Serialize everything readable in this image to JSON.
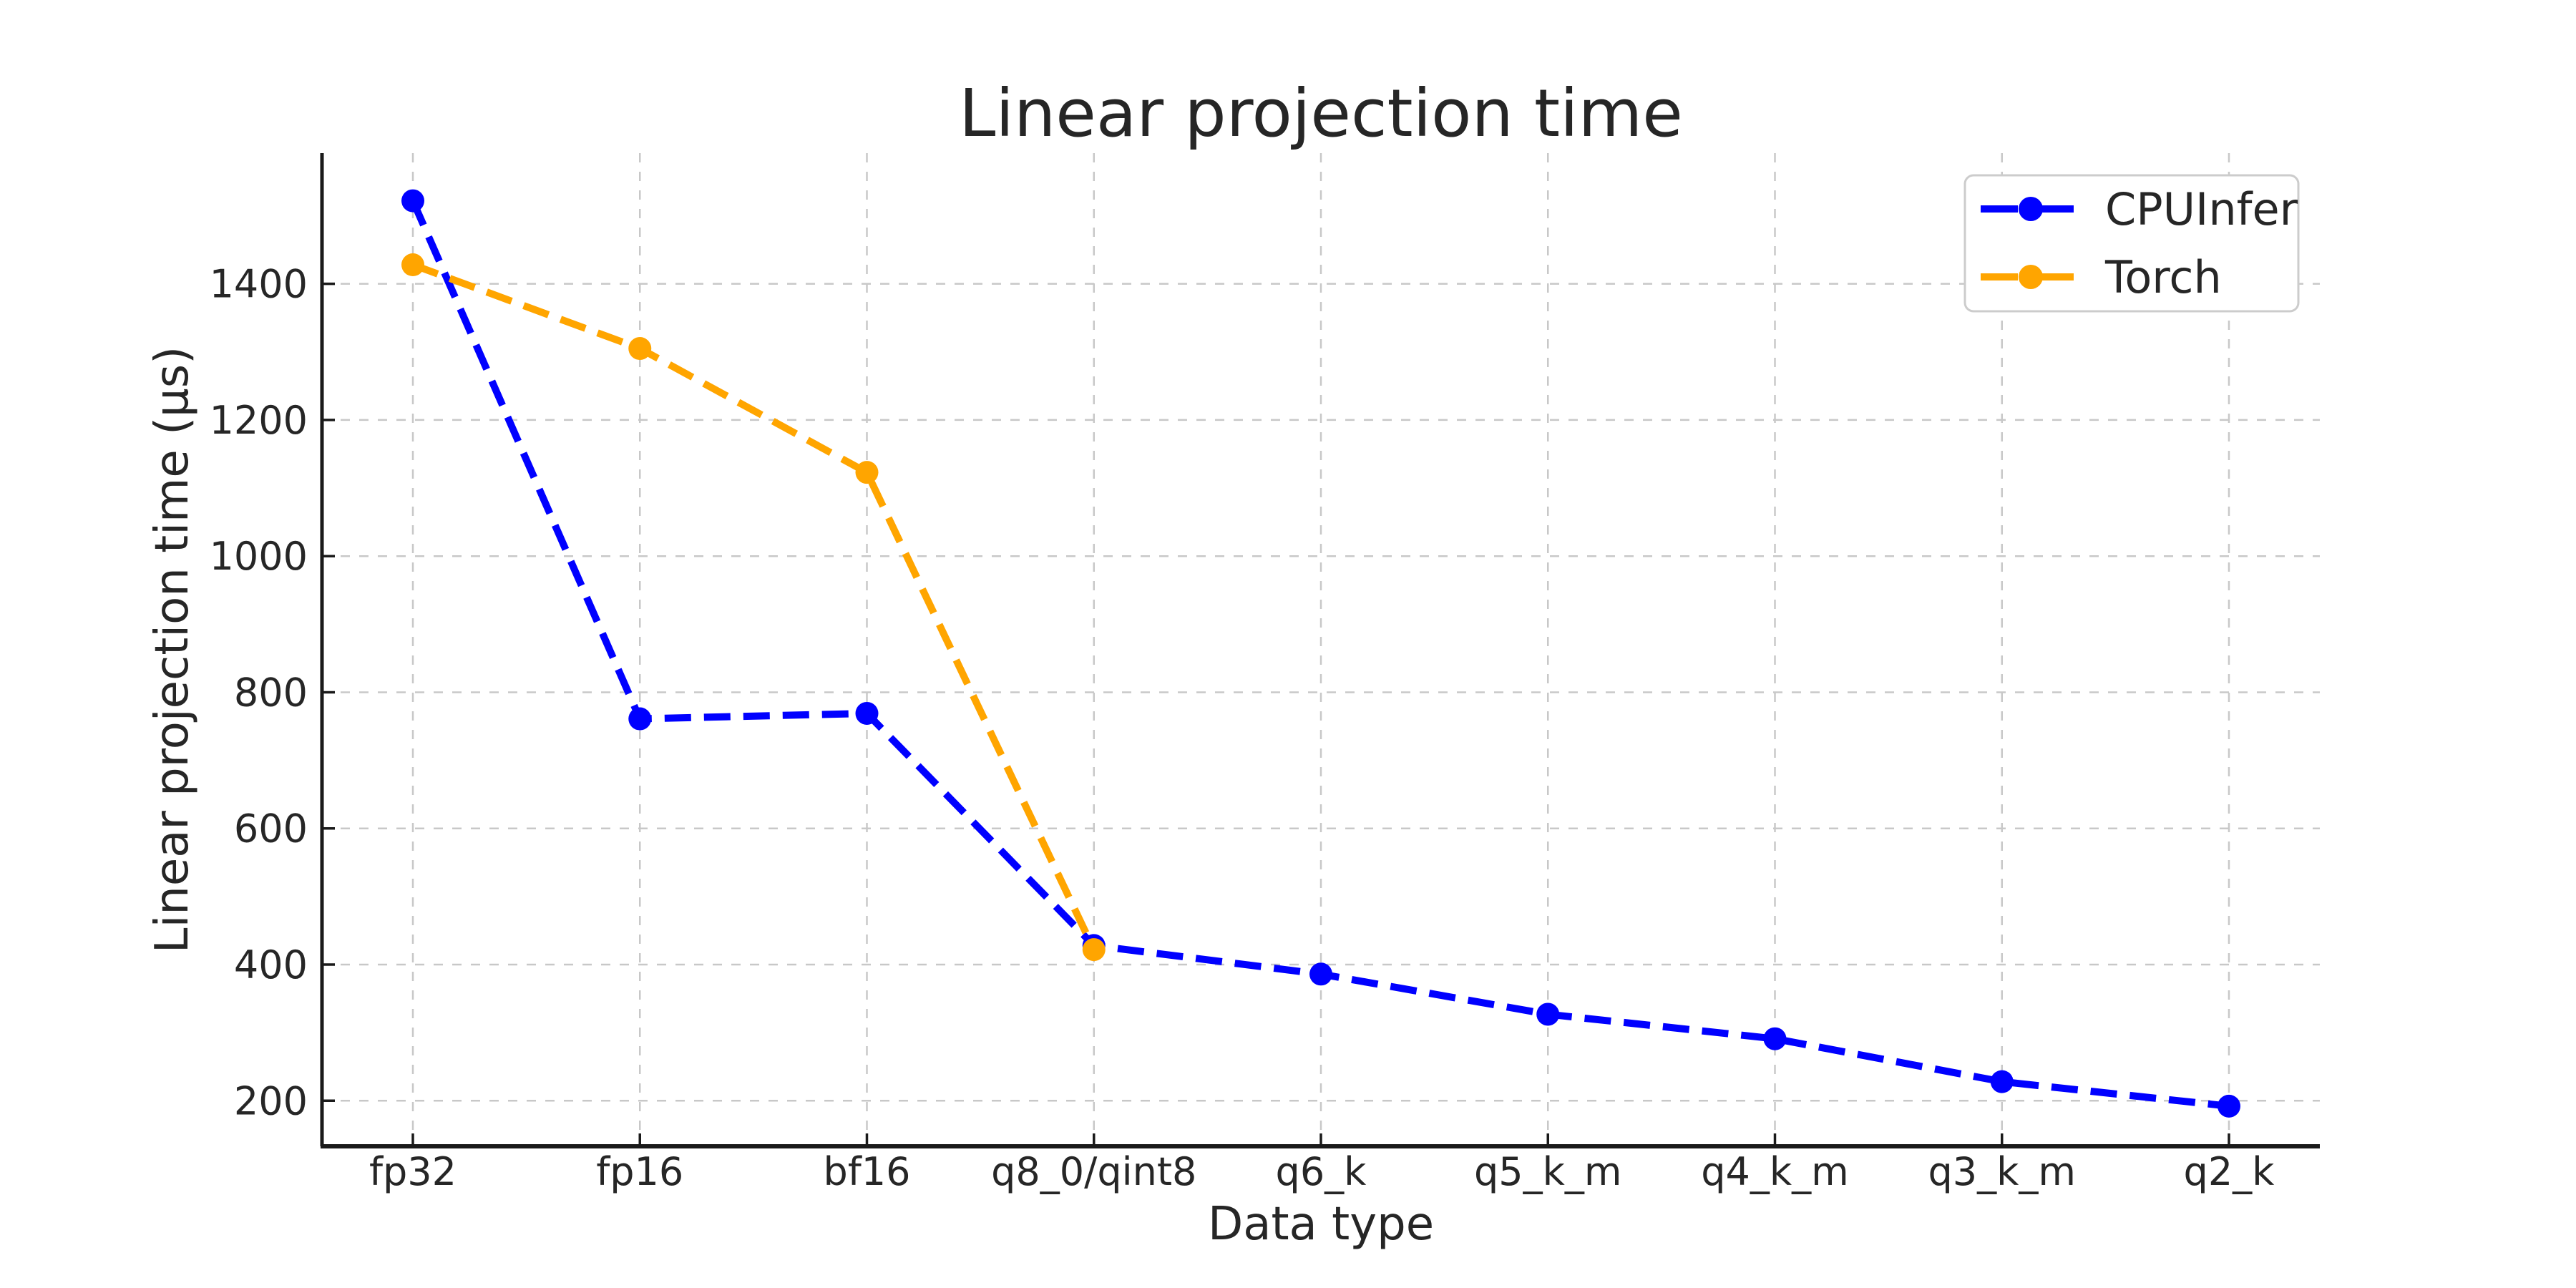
{
  "page": {
    "background_color": "#ffffff"
  },
  "chart_data": {
    "type": "line",
    "title": "Linear projection time",
    "xlabel": "Data type",
    "ylabel": "Linear projection time (µs)",
    "categories": [
      "fp32",
      "fp16",
      "bf16",
      "q8_0/qint8",
      "q6_k",
      "q5_k_m",
      "q4_k_m",
      "q3_k_m",
      "q2_k"
    ],
    "series": [
      {
        "name": "CPUInfer",
        "color": "#0000ff",
        "values": [
          1522,
          761,
          769,
          428,
          386,
          327,
          291,
          228,
          192
        ]
      },
      {
        "name": "Torch",
        "color": "#ffa500",
        "values": [
          1428,
          1305,
          1123,
          422,
          null,
          null,
          null,
          null,
          null
        ]
      }
    ],
    "yticks": [
      200,
      400,
      600,
      800,
      1000,
      1200,
      1400
    ],
    "ylim": [
      133,
      1592
    ],
    "grid": true,
    "grid_style": "dashed",
    "line_style": "dashed",
    "marker": "circle",
    "legend_position": "upper right",
    "grid_color": "#c8c8c8",
    "axis_color": "#1a1a1a",
    "text_color": "#262626",
    "legend_border_color": "#cccccc",
    "legend_background": "#ffffff"
  }
}
